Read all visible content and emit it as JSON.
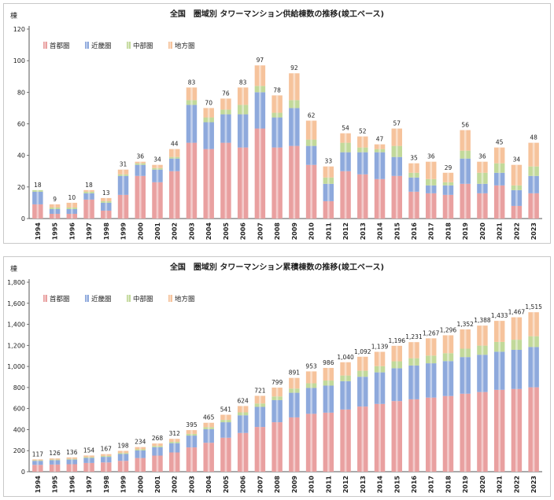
{
  "colors": {
    "shuto": "#e9a0a0",
    "kinki": "#8ea9dc",
    "chubu": "#c2d99a",
    "chiho": "#f6c39c"
  },
  "chart_data": [
    {
      "type": "bar",
      "stacked": true,
      "title": "全国　圏域別 タワーマンション供給棟数の推移(竣工ベース)",
      "ylabel": "棟",
      "ylim": [
        0,
        120
      ],
      "yticks": [
        "0",
        "20",
        "40",
        "60",
        "80",
        "100",
        "120"
      ],
      "legend_position": "top-left",
      "categories": [
        "1994",
        "1995",
        "1996",
        "1997",
        "1998",
        "1999",
        "2000",
        "2001",
        "2002",
        "2003",
        "2004",
        "2005",
        "2006",
        "2007",
        "2008",
        "2009",
        "2010",
        "2011",
        "2012",
        "2013",
        "2014",
        "2015",
        "2016",
        "2017",
        "2018",
        "2019",
        "2020",
        "2021",
        "2022",
        "2023"
      ],
      "totals": [
        "18",
        "9",
        "10",
        "18",
        "13",
        "31",
        "36",
        "34",
        "44",
        "83",
        "70",
        "76",
        "83",
        "97",
        "78",
        "92",
        "62",
        "33",
        "54",
        "52",
        "47",
        "57",
        "35",
        "36",
        "29",
        "56",
        "36",
        "45",
        "34",
        "48"
      ],
      "series": [
        {
          "name": "首都圏",
          "key": "shuto",
          "values": [
            9,
            3,
            3,
            12,
            5,
            15,
            27,
            23,
            30,
            48,
            44,
            48,
            45,
            57,
            45,
            46,
            34,
            11,
            30,
            28,
            25,
            27,
            17,
            16,
            15,
            22,
            16,
            21,
            8,
            16
          ]
        },
        {
          "name": "近畿圏",
          "key": "kinki",
          "values": [
            8,
            3,
            3,
            4,
            5,
            12,
            7,
            8,
            8,
            24,
            17,
            18,
            21,
            23,
            19,
            24,
            12,
            11,
            12,
            14,
            17,
            12,
            9,
            5,
            6,
            16,
            6,
            8,
            10,
            11
          ]
        },
        {
          "name": "中部圏",
          "key": "chubu",
          "values": [
            1,
            1,
            1,
            1,
            1,
            1,
            1,
            1,
            1,
            3,
            3,
            3,
            6,
            4,
            3,
            5,
            4,
            4,
            6,
            3,
            2,
            7,
            3,
            4,
            2,
            5,
            7,
            6,
            3,
            6
          ]
        },
        {
          "name": "地方圏",
          "key": "chiho",
          "values": [
            0,
            2,
            3,
            1,
            2,
            3,
            1,
            2,
            5,
            8,
            6,
            7,
            11,
            13,
            11,
            17,
            12,
            7,
            6,
            7,
            3,
            11,
            6,
            11,
            6,
            13,
            7,
            10,
            13,
            15
          ]
        }
      ]
    },
    {
      "type": "bar",
      "stacked": true,
      "title": "全国　圏域別 タワーマンション累積棟数の推移(竣工ベース)",
      "ylabel": "棟",
      "ylim": [
        0,
        1800
      ],
      "yticks": [
        "0",
        "200",
        "400",
        "600",
        "800",
        "1,000",
        "1,200",
        "1,400",
        "1,600",
        "1,800"
      ],
      "legend_position": "top-left",
      "categories": [
        "1994",
        "1995",
        "1996",
        "1997",
        "1998",
        "1999",
        "2000",
        "2001",
        "2002",
        "2003",
        "2004",
        "2005",
        "2006",
        "2007",
        "2008",
        "2009",
        "2010",
        "2011",
        "2012",
        "2013",
        "2014",
        "2015",
        "2016",
        "2017",
        "2018",
        "2019",
        "2020",
        "2021",
        "2022",
        "2023"
      ],
      "totals": [
        "117",
        "126",
        "136",
        "154",
        "167",
        "198",
        "234",
        "268",
        "312",
        "395",
        "465",
        "541",
        "624",
        "721",
        "799",
        "891",
        "953",
        "986",
        "1,040",
        "1,092",
        "1,139",
        "1,196",
        "1,231",
        "1,267",
        "1,296",
        "1,352",
        "1,388",
        "1,433",
        "1,467",
        "1,515"
      ],
      "series": [
        {
          "name": "首都圏",
          "key": "shuto",
          "values": [
            65,
            68,
            71,
            83,
            88,
            103,
            130,
            153,
            183,
            231,
            275,
            323,
            368,
            425,
            470,
            516,
            550,
            561,
            591,
            619,
            644,
            671,
            688,
            704,
            719,
            741,
            757,
            778,
            786,
            802
          ]
        },
        {
          "name": "近畿圏",
          "key": "kinki",
          "values": [
            38,
            41,
            44,
            48,
            53,
            65,
            72,
            80,
            88,
            112,
            129,
            147,
            168,
            191,
            210,
            234,
            246,
            257,
            269,
            283,
            300,
            312,
            321,
            326,
            332,
            348,
            354,
            362,
            372,
            383
          ]
        },
        {
          "name": "中部圏",
          "key": "chubu",
          "values": [
            5,
            6,
            7,
            8,
            9,
            10,
            11,
            12,
            13,
            16,
            19,
            22,
            28,
            32,
            35,
            40,
            44,
            48,
            54,
            57,
            59,
            66,
            69,
            73,
            75,
            80,
            87,
            93,
            96,
            102
          ]
        },
        {
          "name": "地方圏",
          "key": "chiho",
          "values": [
            9,
            11,
            14,
            15,
            17,
            20,
            21,
            23,
            28,
            36,
            42,
            49,
            60,
            73,
            84,
            101,
            113,
            120,
            126,
            133,
            136,
            147,
            153,
            164,
            170,
            183,
            190,
            200,
            213,
            228
          ]
        }
      ]
    }
  ]
}
